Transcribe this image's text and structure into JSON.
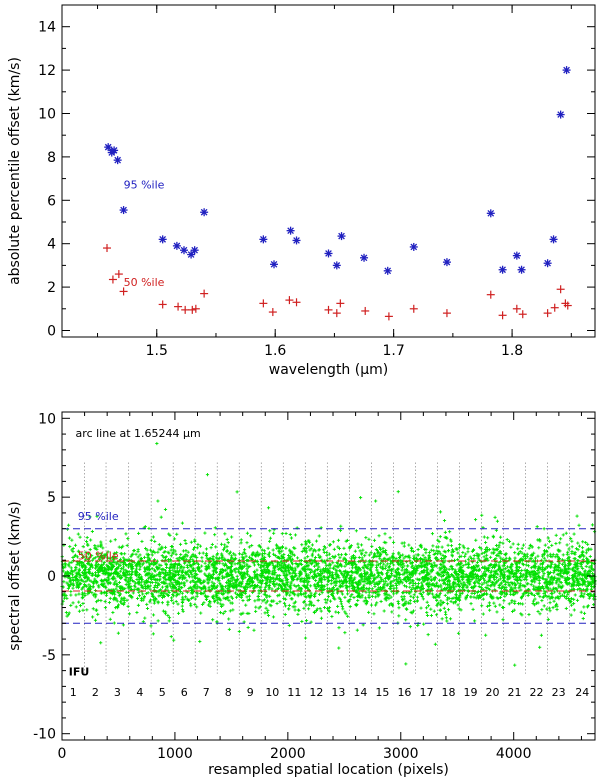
{
  "chart_data": [
    {
      "type": "scatter",
      "xlabel": "wavelength (μm)",
      "ylabel": "absolute percentile offset (km/s)",
      "xlim": [
        1.42,
        1.87
      ],
      "ylim": [
        -0.3,
        15
      ],
      "xticks": [
        1.5,
        1.6,
        1.7,
        1.8
      ],
      "xtick_labels": [
        "1.5",
        "1.6",
        "1.7",
        "1.8"
      ],
      "yticks": [
        0,
        2,
        4,
        6,
        8,
        10,
        12,
        14
      ],
      "ytick_labels": [
        "0",
        "2",
        "4",
        "6",
        "8",
        "10",
        "12",
        "14"
      ],
      "annotations": [
        {
          "text": "95 %ile",
          "x": 1.472,
          "y": 6.55,
          "color": "#2020c0"
        },
        {
          "text": "50 %ile",
          "x": 1.472,
          "y": 2.05,
          "color": "#d02020"
        }
      ],
      "series": [
        {
          "name": "95 %ile",
          "marker": "asterisk",
          "color": "#2020c0",
          "points": [
            [
              1.459,
              8.45
            ],
            [
              1.462,
              8.2
            ],
            [
              1.464,
              8.3
            ],
            [
              1.467,
              7.85
            ],
            [
              1.472,
              5.55
            ],
            [
              1.505,
              4.2
            ],
            [
              1.517,
              3.9
            ],
            [
              1.523,
              3.7
            ],
            [
              1.529,
              3.5
            ],
            [
              1.532,
              3.7
            ],
            [
              1.54,
              5.45
            ],
            [
              1.59,
              4.2
            ],
            [
              1.599,
              3.05
            ],
            [
              1.613,
              4.6
            ],
            [
              1.618,
              4.15
            ],
            [
              1.645,
              3.55
            ],
            [
              1.652,
              3.0
            ],
            [
              1.656,
              4.35
            ],
            [
              1.675,
              3.35
            ],
            [
              1.695,
              2.75
            ],
            [
              1.717,
              3.85
            ],
            [
              1.745,
              3.15
            ],
            [
              1.782,
              5.4
            ],
            [
              1.792,
              2.8
            ],
            [
              1.804,
              3.45
            ],
            [
              1.808,
              2.8
            ],
            [
              1.83,
              3.1
            ],
            [
              1.835,
              4.2
            ],
            [
              1.841,
              9.95
            ],
            [
              1.846,
              12.0
            ]
          ]
        },
        {
          "name": "50 %ile",
          "marker": "plus",
          "color": "#d02020",
          "points": [
            [
              1.458,
              3.8
            ],
            [
              1.463,
              2.35
            ],
            [
              1.468,
              2.6
            ],
            [
              1.472,
              1.8
            ],
            [
              1.505,
              1.2
            ],
            [
              1.518,
              1.1
            ],
            [
              1.524,
              0.95
            ],
            [
              1.53,
              0.95
            ],
            [
              1.533,
              1.0
            ],
            [
              1.54,
              1.7
            ],
            [
              1.59,
              1.25
            ],
            [
              1.598,
              0.85
            ],
            [
              1.612,
              1.4
            ],
            [
              1.618,
              1.3
            ],
            [
              1.645,
              0.95
            ],
            [
              1.652,
              0.8
            ],
            [
              1.655,
              1.25
            ],
            [
              1.676,
              0.9
            ],
            [
              1.696,
              0.65
            ],
            [
              1.717,
              1.0
            ],
            [
              1.745,
              0.8
            ],
            [
              1.782,
              1.65
            ],
            [
              1.792,
              0.7
            ],
            [
              1.804,
              1.0
            ],
            [
              1.809,
              0.75
            ],
            [
              1.83,
              0.8
            ],
            [
              1.836,
              1.05
            ],
            [
              1.841,
              1.9
            ],
            [
              1.845,
              1.25
            ],
            [
              1.847,
              1.15
            ]
          ]
        }
      ]
    },
    {
      "type": "scatter",
      "title": "arc line at 1.65244 μm",
      "xlabel": "resampled spatial location (pixels)",
      "ylabel": "spectral offset (km/s)",
      "xlim": [
        0,
        4720
      ],
      "ylim": [
        -10.4,
        10.4
      ],
      "xticks": [
        0,
        1000,
        2000,
        3000,
        4000
      ],
      "xtick_labels": [
        "0",
        "1000",
        "2000",
        "3000",
        "4000"
      ],
      "yticks": [
        -10,
        -5,
        0,
        5,
        10
      ],
      "ytick_labels": [
        "-10",
        "-5",
        "0",
        "5",
        "10"
      ],
      "point_color": "#00e000",
      "point_count": 4700,
      "point_spread_kms": 1.5,
      "percentile_lines": [
        {
          "label": "95 %ile",
          "y": 3.0,
          "color": "#2020c0"
        },
        {
          "label": "95 %ile",
          "y": -3.0,
          "color": "#2020c0"
        },
        {
          "label": "50 %ile",
          "y": 0.95,
          "color": "#d02020"
        },
        {
          "label": "50 %ile",
          "y": -0.95,
          "color": "#d02020"
        }
      ],
      "annotations": [
        {
          "text": "95 %ile",
          "x": 140,
          "y": 3.55,
          "color": "#2020c0"
        },
        {
          "text": "50 %ile",
          "x": 140,
          "y": 1.05,
          "color": "#d02020"
        }
      ],
      "ifu_label": "IFU",
      "ifu_numbers": [
        "1",
        "2",
        "3",
        "4",
        "5",
        "6",
        "7",
        "8",
        "9",
        "10",
        "11",
        "12",
        "13",
        "14",
        "15",
        "16",
        "17",
        "18",
        "19",
        "20",
        "21",
        "22",
        "23",
        "24"
      ],
      "ifu_separators": [
        200,
        390,
        590,
        790,
        985,
        1180,
        1375,
        1570,
        1765,
        1960,
        2155,
        2350,
        2545,
        2740,
        2935,
        3130,
        3325,
        3520,
        3715,
        3910,
        4105,
        4300,
        4495
      ]
    }
  ]
}
